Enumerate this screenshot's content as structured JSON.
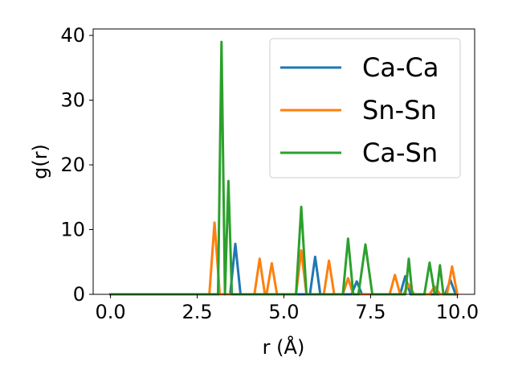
{
  "chart_data": {
    "type": "line",
    "xlabel": "r (Å)",
    "ylabel": "g(r)",
    "xlim": [
      -0.5,
      10.5
    ],
    "ylim": [
      0,
      41
    ],
    "xticks": [
      0.0,
      2.5,
      5.0,
      7.5,
      10.0
    ],
    "xtick_labels": [
      "0.0",
      "2.5",
      "5.0",
      "7.5",
      "10.0"
    ],
    "yticks": [
      0,
      10,
      20,
      30,
      40
    ],
    "ytick_labels": [
      "0",
      "10",
      "20",
      "30",
      "40"
    ],
    "grid": false,
    "legend_position": "top-right",
    "series": [
      {
        "name": "Ca-Ca",
        "color": "#1f77b4",
        "x": [
          0.0,
          3.45,
          3.6,
          3.75,
          5.75,
          5.9,
          6.05,
          6.95,
          7.1,
          7.25,
          8.35,
          8.5,
          8.65,
          9.65,
          9.8,
          9.95
        ],
        "y": [
          0,
          0,
          7.8,
          0,
          0,
          5.8,
          0,
          0,
          2.0,
          0,
          0,
          2.8,
          0,
          0,
          2.2,
          0
        ]
      },
      {
        "name": "Sn-Sn",
        "color": "#ff7f0e",
        "x": [
          0.0,
          2.85,
          3.0,
          3.15,
          4.15,
          4.3,
          4.45,
          4.5,
          4.65,
          4.8,
          5.35,
          5.5,
          5.65,
          6.15,
          6.3,
          6.45,
          6.7,
          6.85,
          7.0,
          8.05,
          8.2,
          8.35,
          8.45,
          8.6,
          8.75,
          9.2,
          9.35,
          9.5,
          9.7,
          9.85,
          10.0
        ],
        "y": [
          0,
          0,
          11.1,
          0,
          0,
          5.5,
          0,
          0,
          4.8,
          0,
          0,
          6.8,
          0,
          0,
          5.2,
          0,
          0,
          2.5,
          0,
          0,
          3.0,
          0,
          0,
          1.5,
          0,
          0,
          1.2,
          0,
          0,
          4.3,
          0
        ]
      },
      {
        "name": "Ca-Sn",
        "color": "#2ca02c",
        "x": [
          0.0,
          3.1,
          3.2,
          3.3,
          3.4,
          3.5,
          5.35,
          5.5,
          5.65,
          6.7,
          6.85,
          7.0,
          7.15,
          7.35,
          7.55,
          8.5,
          8.6,
          8.7,
          9.05,
          9.2,
          9.35,
          9.4,
          9.5,
          9.6,
          9.9
        ],
        "y": [
          0,
          0,
          39.0,
          0,
          17.5,
          0,
          0,
          13.5,
          0,
          0,
          8.6,
          0,
          0,
          7.7,
          0,
          0,
          5.5,
          0,
          0,
          4.9,
          0,
          0,
          4.5,
          0,
          0
        ]
      }
    ]
  }
}
